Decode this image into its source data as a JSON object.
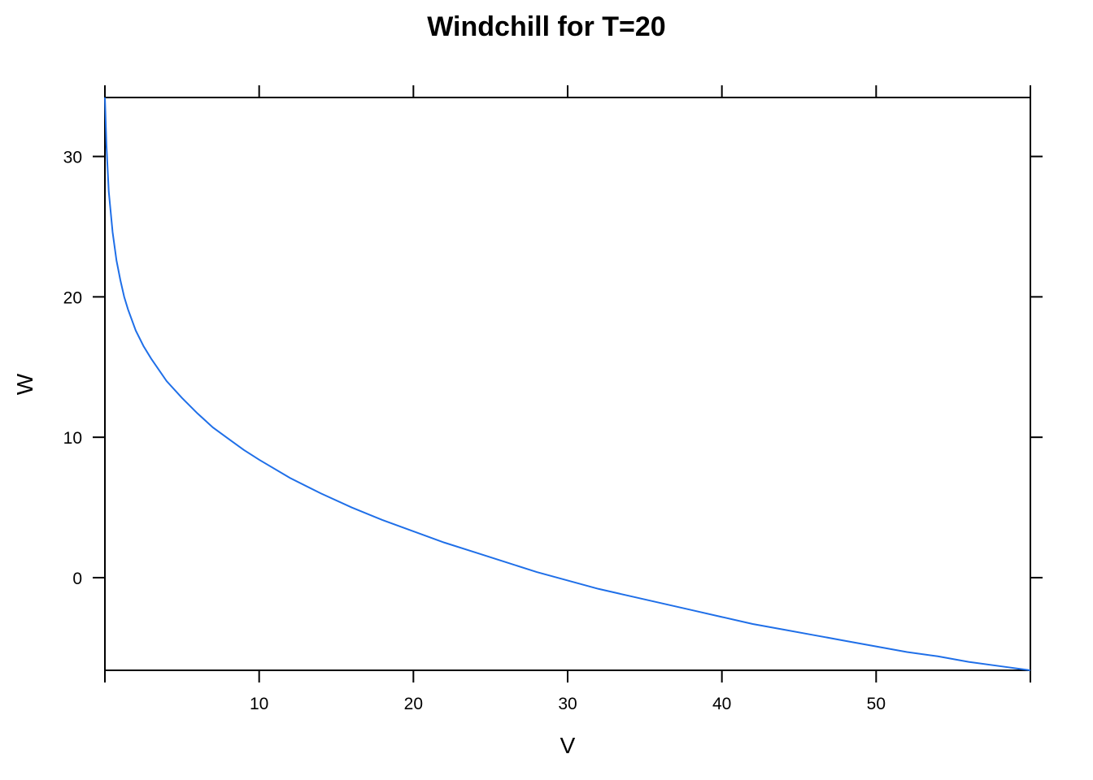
{
  "chart_data": {
    "type": "line",
    "title": "Windchill for T=20",
    "xlabel": "V",
    "ylabel": "W",
    "xlim": [
      0,
      60
    ],
    "ylim": [
      -6.6,
      34.2
    ],
    "x_ticks": [
      10,
      20,
      30,
      40,
      50
    ],
    "y_ticks": [
      0,
      10,
      20,
      30
    ],
    "grid": false,
    "line_color": "#1f6fe8",
    "series": [
      {
        "x": [
          0,
          0.1,
          0.25,
          0.5,
          0.75,
          1,
          1.25,
          1.5,
          2,
          2.5,
          3,
          4,
          5,
          6,
          7,
          8,
          9,
          10,
          12,
          14,
          16,
          18,
          20,
          22,
          24,
          26,
          28,
          30,
          32,
          34,
          36,
          38,
          40,
          42,
          44,
          46,
          48,
          50,
          52,
          54,
          56,
          58,
          60
        ],
        "values": [
          34.2,
          30.8,
          27.5,
          24.6,
          22.6,
          21.2,
          20.0,
          19.1,
          17.6,
          16.5,
          15.6,
          14.0,
          12.8,
          11.7,
          10.7,
          9.9,
          9.1,
          8.4,
          7.1,
          6.0,
          5.0,
          4.1,
          3.3,
          2.5,
          1.8,
          1.1,
          0.4,
          -0.2,
          -0.8,
          -1.3,
          -1.8,
          -2.3,
          -2.8,
          -3.3,
          -3.7,
          -4.1,
          -4.5,
          -4.9,
          -5.3,
          -5.6,
          -6.0,
          -6.3,
          -6.6
        ]
      }
    ]
  }
}
